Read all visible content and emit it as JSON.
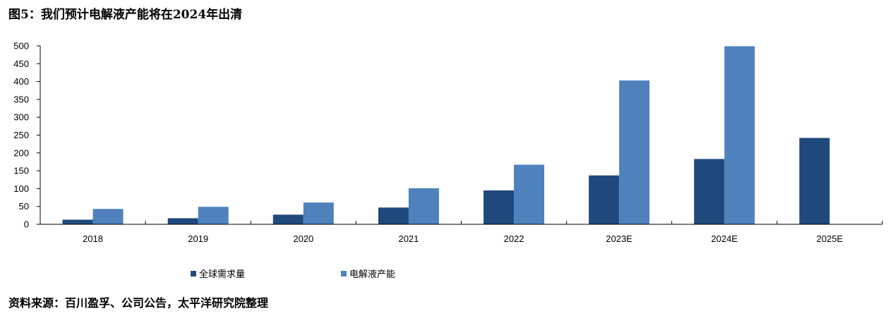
{
  "title": "图5：我们预计电解液产能将在2024年出清",
  "source": "资料来源：百川盈孚、公司公告，太平洋研究院整理",
  "chart_data": {
    "type": "bar",
    "categories": [
      "2018",
      "2019",
      "2020",
      "2021",
      "2022",
      "2023E",
      "2024E",
      "2025E"
    ],
    "series": [
      {
        "name": "全球需求量",
        "color": "#1F497D",
        "values": [
          13,
          17,
          27,
          47,
          95,
          137,
          183,
          242
        ]
      },
      {
        "name": "电解液产能",
        "color": "#4F81BD",
        "values": [
          43,
          49,
          61,
          101,
          167,
          403,
          499,
          null
        ]
      }
    ],
    "ylim": [
      0,
      500
    ],
    "yticks": [
      0,
      50,
      100,
      150,
      200,
      250,
      300,
      350,
      400,
      450,
      500
    ],
    "grid": false,
    "legend_position": "bottom"
  }
}
